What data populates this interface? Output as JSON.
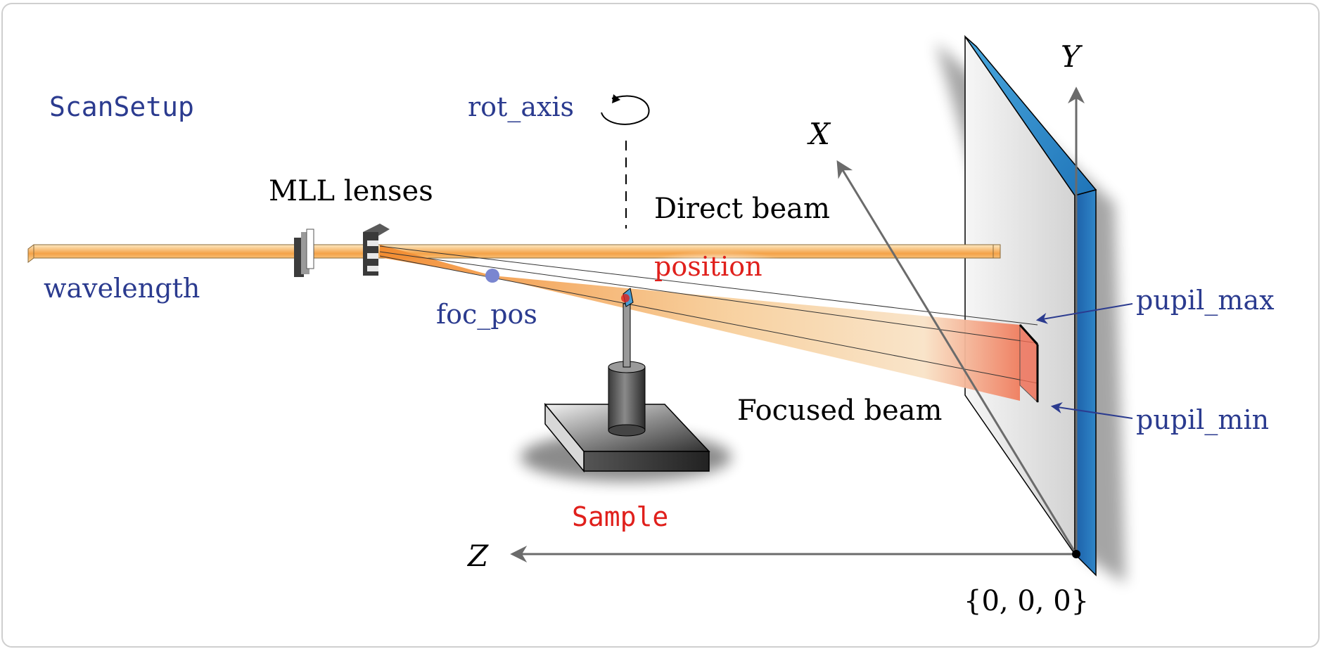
{
  "labels": {
    "scan_setup": "ScanSetup",
    "rot_axis": "rot_axis",
    "mll_lenses": "MLL lenses",
    "direct_beam": "Direct beam",
    "wavelength": "wavelength",
    "position": "position",
    "foc_pos": "foc_pos",
    "pupil_max": "pupil_max",
    "pupil_min": "pupil_min",
    "focused_beam": "Focused beam",
    "sample": "Sample",
    "origin": "{0, 0, 0}"
  },
  "axes": {
    "x": "X",
    "y": "Y",
    "z": "Z"
  },
  "colors": {
    "blue_label": "#2b3b8f",
    "red_label": "#e0201c",
    "beam_orange": "#f2a24a",
    "detector_blue": "#2a7cc0",
    "axis_gray": "#6b6b6b",
    "focus_dot": "#7a86d0"
  }
}
